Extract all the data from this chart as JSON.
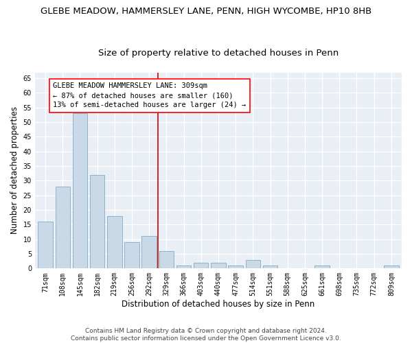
{
  "title": "GLEBE MEADOW, HAMMERSLEY LANE, PENN, HIGH WYCOMBE, HP10 8HB",
  "subtitle": "Size of property relative to detached houses in Penn",
  "xlabel": "Distribution of detached houses by size in Penn",
  "ylabel": "Number of detached properties",
  "bar_color": "#c9d9e8",
  "bar_edge_color": "#8ab4cc",
  "categories": [
    "71sqm",
    "108sqm",
    "145sqm",
    "182sqm",
    "219sqm",
    "256sqm",
    "292sqm",
    "329sqm",
    "366sqm",
    "403sqm",
    "440sqm",
    "477sqm",
    "514sqm",
    "551sqm",
    "588sqm",
    "625sqm",
    "661sqm",
    "698sqm",
    "735sqm",
    "772sqm",
    "809sqm"
  ],
  "values": [
    16,
    28,
    53,
    32,
    18,
    9,
    11,
    6,
    1,
    2,
    2,
    1,
    3,
    1,
    0,
    0,
    1,
    0,
    0,
    0,
    1
  ],
  "vline_x": 6.5,
  "vline_color": "#cc0000",
  "annotation_line1": "GLEBE MEADOW HAMMERSLEY LANE: 309sqm",
  "annotation_line2": "← 87% of detached houses are smaller (160)",
  "annotation_line3": "13% of semi-detached houses are larger (24) →",
  "ylim": [
    0,
    67
  ],
  "yticks": [
    0,
    5,
    10,
    15,
    20,
    25,
    30,
    35,
    40,
    45,
    50,
    55,
    60,
    65
  ],
  "background_color": "#eaeff5",
  "footer": "Contains HM Land Registry data © Crown copyright and database right 2024.\nContains public sector information licensed under the Open Government Licence v3.0.",
  "title_fontsize": 9.5,
  "subtitle_fontsize": 9.5,
  "axis_label_fontsize": 8.5,
  "tick_fontsize": 7,
  "annotation_fontsize": 7.5,
  "footer_fontsize": 6.5
}
